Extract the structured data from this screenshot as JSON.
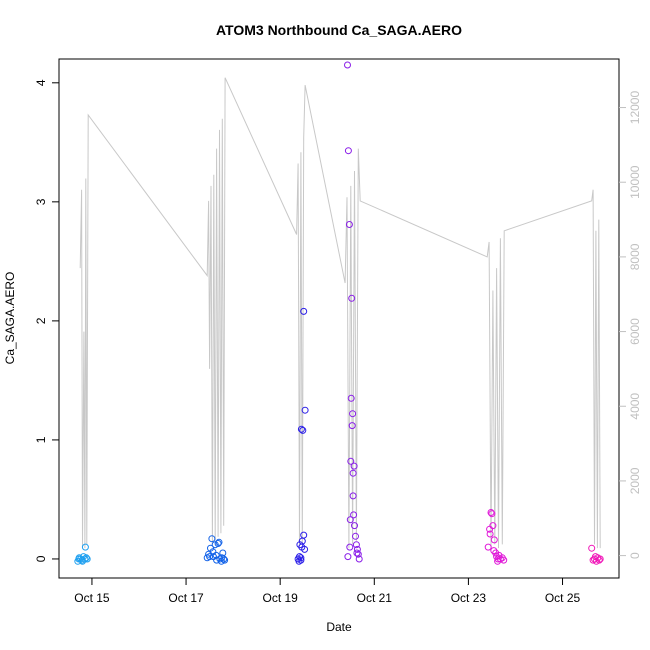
{
  "chart_data": {
    "type": "scatter",
    "title": "ATOM3 Northbound Ca_SAGA.AERO",
    "xlabel": "Date",
    "ylabel": "Ca_SAGA.AERO",
    "x_ticks": [
      "Oct 15",
      "Oct 17",
      "Oct 19",
      "Oct 21",
      "Oct 23",
      "Oct 25"
    ],
    "x_tick_days": [
      15,
      17,
      19,
      21,
      23,
      25
    ],
    "xlim_days": [
      14.3,
      26.2
    ],
    "ylim": [
      -0.16,
      4.2
    ],
    "y_ticks": [
      0,
      1,
      2,
      3,
      4
    ],
    "y2lim": [
      -600,
      13300
    ],
    "y2_ticks": [
      0,
      2000,
      4000,
      6000,
      8000,
      10000,
      12000
    ],
    "grid": false,
    "colors": {
      "box": "#000000",
      "altitude_line": "#c8c8c8",
      "right_axis": "#c0c0c0"
    },
    "altitude_track": {
      "x_days": [
        14.75,
        14.78,
        14.8,
        14.83,
        14.85,
        14.87,
        14.89,
        14.92,
        17.45,
        17.48,
        17.5,
        17.53,
        17.56,
        17.59,
        17.62,
        17.65,
        17.68,
        17.71,
        17.74,
        17.77,
        17.8,
        17.83,
        19.35,
        19.38,
        19.41,
        19.44,
        19.47,
        19.5,
        19.53,
        20.38,
        20.42,
        20.46,
        20.5,
        20.54,
        20.58,
        20.62,
        20.66,
        20.7,
        23.4,
        23.44,
        23.48,
        23.52,
        23.56,
        23.6,
        23.64,
        23.68,
        23.72,
        23.76,
        25.62,
        25.65,
        25.68,
        25.71,
        25.74,
        25.77,
        25.8
      ],
      "y_alt": [
        7700,
        9800,
        200,
        6000,
        200,
        10100,
        300,
        11800,
        7500,
        9500,
        5000,
        9900,
        300,
        10200,
        400,
        10900,
        500,
        11400,
        600,
        11700,
        800,
        12800,
        8600,
        10500,
        200,
        10800,
        300,
        11200,
        12600,
        7300,
        9600,
        200,
        9900,
        300,
        10300,
        400,
        10900,
        9500,
        8000,
        8400,
        200,
        7100,
        300,
        7700,
        200,
        8500,
        300,
        8700,
        9500,
        9800,
        300,
        8700,
        200,
        9000,
        200
      ]
    },
    "series": [
      {
        "color": "#1fa0f0",
        "x_days": [
          14.7,
          14.73,
          14.76,
          14.79,
          14.82,
          14.85,
          14.88,
          14.72,
          14.8,
          14.86,
          14.9
        ],
        "values": [
          -0.02,
          0.01,
          0.0,
          -0.01,
          0.02,
          0.0,
          0.01,
          0.0,
          -0.02,
          0.1,
          0.0
        ]
      },
      {
        "color": "#1262e8",
        "x_days": [
          17.45,
          17.48,
          17.52,
          17.55,
          17.58,
          17.62,
          17.65,
          17.68,
          17.72,
          17.75,
          17.78,
          17.82,
          17.5,
          17.57,
          17.64,
          17.7,
          17.76,
          17.8
        ],
        "values": [
          0.01,
          0.04,
          0.09,
          0.17,
          0.02,
          0.12,
          -0.01,
          0.13,
          0.0,
          -0.02,
          0.05,
          -0.01,
          0.02,
          0.06,
          0.03,
          0.14,
          0.01,
          0.0
        ]
      },
      {
        "color": "#2b1ee8",
        "x_days": [
          19.38,
          19.41,
          19.44,
          19.47,
          19.5,
          19.53,
          19.45,
          19.48,
          19.5,
          19.42,
          19.46,
          19.4,
          19.52,
          19.44
        ],
        "values": [
          0.0,
          0.02,
          -0.01,
          0.15,
          2.08,
          1.25,
          1.09,
          1.08,
          0.2,
          0.12,
          0.1,
          -0.02,
          0.08,
          0.01
        ]
      },
      {
        "color": "#8a1ee8",
        "x_days": [
          20.43,
          20.45,
          20.47,
          20.49,
          20.5,
          20.51,
          20.52,
          20.53,
          20.54,
          20.55,
          20.56,
          20.57,
          20.58,
          20.6,
          20.62,
          20.64,
          20.66,
          20.68,
          20.44,
          20.48,
          20.55,
          20.63
        ],
        "values": [
          4.15,
          3.43,
          2.81,
          0.33,
          0.82,
          1.35,
          2.19,
          1.12,
          1.22,
          0.53,
          0.37,
          0.78,
          0.28,
          0.19,
          0.12,
          0.08,
          0.04,
          0.0,
          0.02,
          0.1,
          0.72,
          0.05
        ]
      },
      {
        "color": "#e018d8",
        "x_days": [
          23.42,
          23.45,
          23.48,
          23.5,
          23.52,
          23.55,
          23.58,
          23.6,
          23.62,
          23.65,
          23.68,
          23.72,
          23.75,
          23.46,
          23.54,
          23.63
        ],
        "values": [
          0.1,
          0.25,
          0.39,
          0.38,
          0.28,
          0.16,
          0.05,
          0.02,
          -0.02,
          0.03,
          0.0,
          0.01,
          -0.01,
          0.21,
          0.07,
          0.0
        ]
      },
      {
        "color": "#f018b8",
        "x_days": [
          25.62,
          25.65,
          25.68,
          25.72,
          25.75,
          25.78,
          25.8,
          25.7
        ],
        "values": [
          0.09,
          -0.01,
          0.0,
          -0.02,
          0.01,
          -0.01,
          0.0,
          0.02
        ]
      }
    ]
  }
}
